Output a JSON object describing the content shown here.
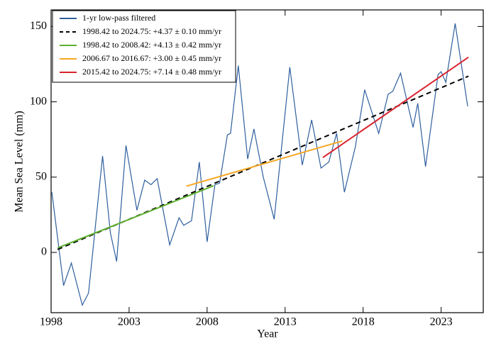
{
  "chart_data": {
    "type": "line",
    "xlabel": "Year",
    "ylabel": "Mean Sea Level (mm)",
    "xlim": [
      1998,
      2025.7
    ],
    "ylim": [
      -40,
      161
    ],
    "xticks": [
      1998,
      2003,
      2008,
      2013,
      2018,
      2023
    ],
    "yticks": [
      0,
      50,
      100,
      150
    ],
    "legend": "upper left",
    "series": [
      {
        "name": "1-yr low-pass filtered",
        "color": "#2f5f9e",
        "dash": false,
        "x": [
          1998.05,
          1998.8,
          1999.3,
          2000.0,
          2000.4,
          2001.3,
          2001.8,
          2002.2,
          2002.8,
          2003.5,
          2004.0,
          2004.4,
          2004.8,
          2005.6,
          2006.2,
          2006.5,
          2007.0,
          2007.5,
          2008.0,
          2008.5,
          2008.8,
          2009.3,
          2009.5,
          2010.0,
          2010.6,
          2011.0,
          2011.6,
          2012.3,
          2013.3,
          2014.1,
          2014.7,
          2015.3,
          2015.8,
          2016.3,
          2016.8,
          2017.5,
          2018.1,
          2019.0,
          2019.6,
          2019.9,
          2020.4,
          2021.2,
          2021.5,
          2022.0,
          2022.8,
          2023.0,
          2023.3,
          2023.9,
          2024.7
        ],
        "values": [
          40,
          -22,
          -7,
          -35,
          -27,
          64,
          13,
          -6,
          71,
          28,
          48,
          45,
          49,
          5,
          23,
          18,
          21,
          60,
          7,
          45,
          46,
          78,
          79,
          124,
          62,
          82,
          50,
          22,
          123,
          58,
          88,
          56,
          60,
          79,
          40,
          70,
          108,
          79,
          105,
          107,
          119,
          83,
          99,
          57,
          118,
          120,
          113,
          152,
          97
        ]
      },
      {
        "name": "1998.42 to 2024.75: +4.37 ± 0.10 mm/yr",
        "color": "#000000",
        "dash": true,
        "x": [
          1998.42,
          2024.75
        ],
        "values": [
          2,
          117
        ]
      },
      {
        "name": "1998.42 to 2008.42: +4.13 ± 0.42 mm/yr",
        "color": "#5fb030",
        "dash": false,
        "x": [
          1998.42,
          2008.42
        ],
        "values": [
          3,
          44.3
        ]
      },
      {
        "name": "2006.67 to 2016.67: +3.00 ± 0.45 mm/yr",
        "color": "#f5a623",
        "dash": false,
        "x": [
          2006.67,
          2016.67
        ],
        "values": [
          44,
          74
        ]
      },
      {
        "name": "2015.42 to 2024.75: +7.14 ± 0.48 mm/yr",
        "color": "#d9232e",
        "dash": false,
        "x": [
          2015.42,
          2024.75
        ],
        "values": [
          63,
          129.6
        ]
      }
    ]
  }
}
